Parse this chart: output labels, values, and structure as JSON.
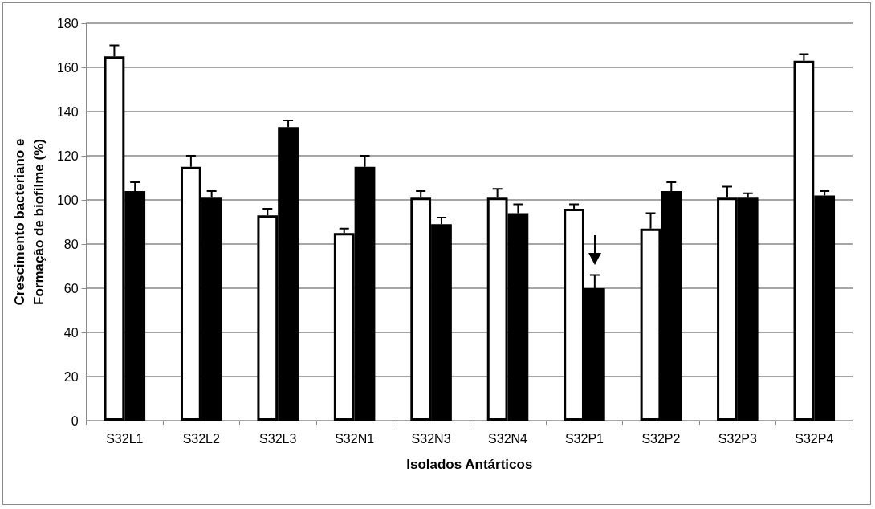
{
  "chart_data": {
    "type": "bar",
    "xlabel": "Isolados Antárticos",
    "ylabel": "Crescimento bacteriano e Formação de biofilme (%)",
    "categories": [
      "S32L1",
      "S32L2",
      "S32L3",
      "S32N1",
      "S32N3",
      "S32N4",
      "S32P1",
      "S32P2",
      "S32P3",
      "S32P4"
    ],
    "series": [
      {
        "color": "#ffffff",
        "values": [
          165,
          115,
          93,
          85,
          101,
          101,
          96,
          87,
          101,
          163
        ],
        "errors": [
          5,
          5,
          3,
          2,
          3,
          4,
          2,
          7,
          5,
          3
        ]
      },
      {
        "color": "#000000",
        "values": [
          104,
          101,
          133,
          115,
          89,
          94,
          60,
          104,
          101,
          102
        ],
        "errors": [
          4,
          3,
          3,
          5,
          3,
          4,
          6,
          4,
          2,
          2
        ]
      }
    ],
    "ylim": [
      0,
      180
    ],
    "yticks": [
      0,
      20,
      40,
      60,
      80,
      100,
      120,
      140,
      160,
      180
    ],
    "grid": "y"
  }
}
